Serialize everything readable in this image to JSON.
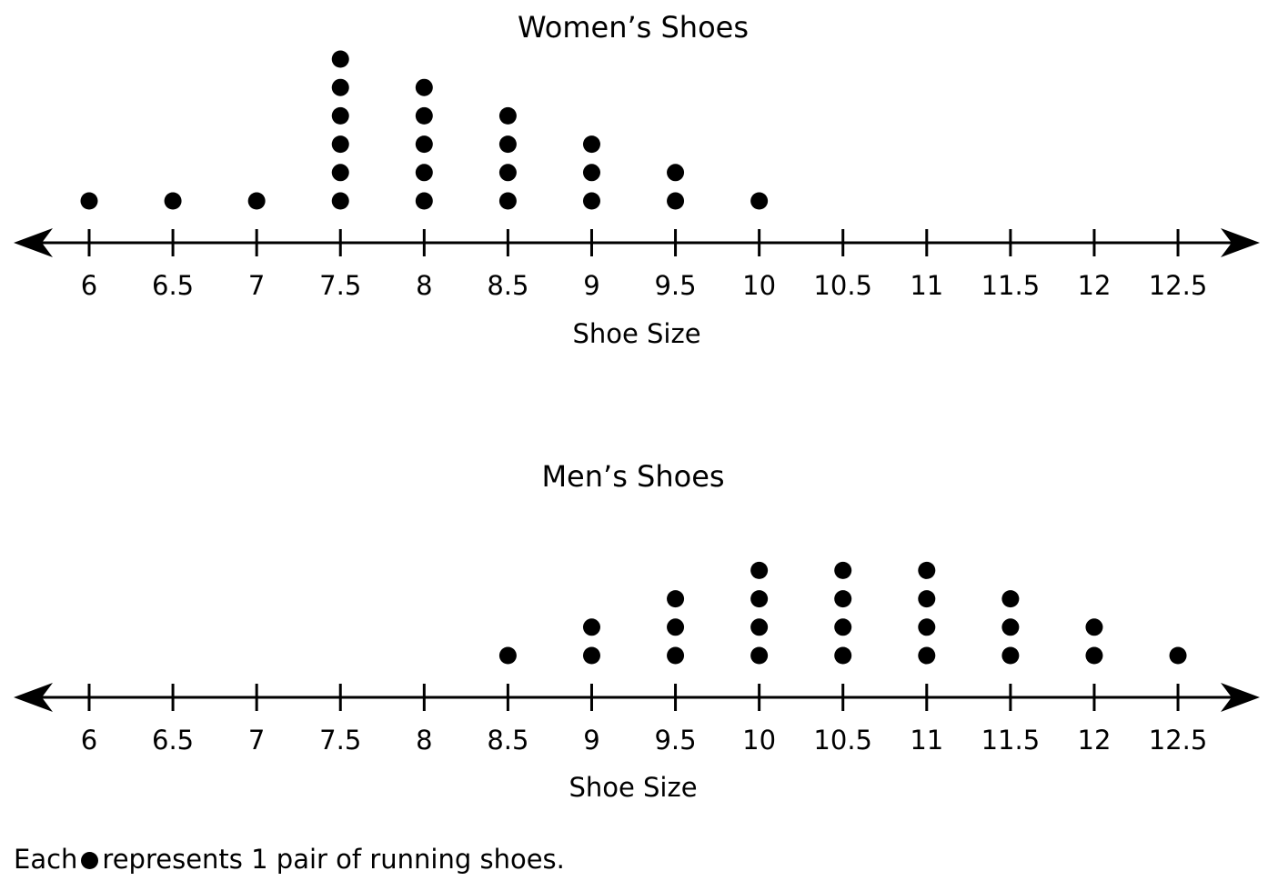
{
  "chart_data": [
    {
      "type": "dot_plot",
      "title": "Women’s Shoes",
      "xlabel": "Shoe Size",
      "ticks": [
        "6",
        "6.5",
        "7",
        "7.5",
        "8",
        "8.5",
        "9",
        "9.5",
        "10",
        "10.5",
        "11",
        "11.5",
        "12",
        "12.5"
      ],
      "x": [
        6,
        6.5,
        7,
        7.5,
        8,
        8.5,
        9,
        9.5,
        10,
        10.5,
        11,
        11.5,
        12,
        12.5
      ],
      "counts": [
        1,
        1,
        1,
        6,
        5,
        4,
        3,
        2,
        1,
        0,
        0,
        0,
        0,
        0
      ]
    },
    {
      "type": "dot_plot",
      "title": "Men’s Shoes",
      "xlabel": "Shoe Size",
      "ticks": [
        "6",
        "6.5",
        "7",
        "7.5",
        "8",
        "8.5",
        "9",
        "9.5",
        "10",
        "10.5",
        "11",
        "11.5",
        "12",
        "12.5"
      ],
      "x": [
        6,
        6.5,
        7,
        7.5,
        8,
        8.5,
        9,
        9.5,
        10,
        10.5,
        11,
        11.5,
        12,
        12.5
      ],
      "counts": [
        0,
        0,
        0,
        0,
        0,
        1,
        2,
        3,
        4,
        4,
        4,
        3,
        2,
        1
      ]
    }
  ],
  "legend": {
    "prefix": "Each",
    "suffix": "represents 1 pair of running shoes."
  }
}
